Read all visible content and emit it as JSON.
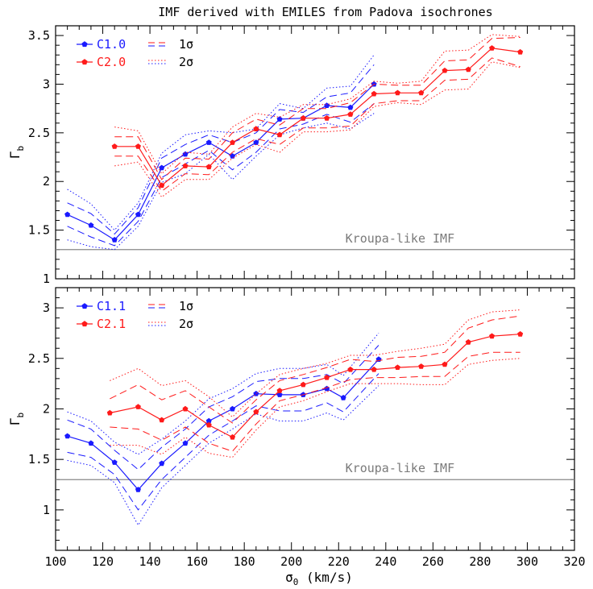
{
  "figure_title": "IMF derived with EMILES from Padova isochrones",
  "colors": {
    "blue": "#1a1aff",
    "red": "#ff1a1a",
    "kroupa": "#888888",
    "axis": "#000000"
  },
  "chart_data": [
    {
      "type": "line",
      "panel": "top",
      "title": "IMF derived with EMILES from Padova isochrones",
      "xlabel": "",
      "ylabel": "Γb",
      "xlim": [
        100,
        320
      ],
      "ylim": [
        1,
        3.6
      ],
      "x_ticks": [
        100,
        120,
        140,
        160,
        180,
        200,
        220,
        240,
        260,
        280,
        300,
        320
      ],
      "y_ticks": [
        1,
        1.5,
        2,
        2.5,
        3,
        3.5
      ],
      "y_tick_labels": [
        "1",
        "1.5",
        "2",
        "2.5",
        "3",
        "3.5"
      ],
      "reference_line": {
        "y": 1.3,
        "label": "Kroupa-like IMF"
      },
      "legend": {
        "placement": "top-left",
        "entries": [
          {
            "label": "C1.0",
            "color": "#1a1aff",
            "style": "solid-marker"
          },
          {
            "label": "C2.0",
            "color": "#ff1a1a",
            "style": "solid-marker"
          },
          {
            "label": "1σ",
            "style": "dashed"
          },
          {
            "label": "2σ",
            "style": "dotted"
          }
        ]
      },
      "series": [
        {
          "name": "C1.0",
          "color": "#1a1aff",
          "x": [
            105,
            115,
            125,
            135,
            145,
            155,
            165,
            175,
            185,
            195,
            205,
            215,
            225,
            235
          ],
          "y": [
            1.66,
            1.55,
            1.4,
            1.66,
            2.14,
            2.28,
            2.4,
            2.26,
            2.4,
            2.64,
            2.65,
            2.78,
            2.76,
            3.0
          ],
          "sigma1": [
            0.12,
            0.12,
            0.06,
            0.07,
            0.1,
            0.1,
            0.08,
            0.14,
            0.1,
            0.1,
            0.06,
            0.09,
            0.15,
            0.2
          ],
          "sigma2": [
            0.26,
            0.22,
            0.1,
            0.12,
            0.15,
            0.2,
            0.12,
            0.24,
            0.14,
            0.16,
            0.1,
            0.18,
            0.22,
            0.3
          ]
        },
        {
          "name": "C2.0",
          "color": "#ff1a1a",
          "x": [
            125,
            135,
            145,
            155,
            165,
            175,
            185,
            195,
            205,
            215,
            225,
            235,
            245,
            255,
            265,
            275,
            285,
            297
          ],
          "y": [
            2.36,
            2.36,
            1.96,
            2.16,
            2.15,
            2.4,
            2.54,
            2.48,
            2.65,
            2.65,
            2.69,
            2.9,
            2.91,
            2.91,
            3.14,
            3.15,
            3.37,
            3.33
          ],
          "sigma1": [
            0.1,
            0.1,
            0.06,
            0.08,
            0.08,
            0.1,
            0.1,
            0.1,
            0.1,
            0.1,
            0.12,
            0.1,
            0.08,
            0.08,
            0.1,
            0.1,
            0.1,
            0.15
          ],
          "sigma2": [
            0.2,
            0.16,
            0.12,
            0.14,
            0.13,
            0.16,
            0.16,
            0.18,
            0.14,
            0.14,
            0.16,
            0.13,
            0.1,
            0.12,
            0.2,
            0.2,
            0.14,
            0.16
          ]
        }
      ]
    },
    {
      "type": "line",
      "panel": "bottom",
      "xlabel": "σ0 (km/s)",
      "ylabel": "Γb",
      "xlim": [
        100,
        320
      ],
      "ylim": [
        0.6,
        3.2
      ],
      "x_ticks": [
        100,
        120,
        140,
        160,
        180,
        200,
        220,
        240,
        260,
        280,
        300,
        320
      ],
      "x_tick_labels": [
        "100",
        "120",
        "140",
        "160",
        "180",
        "200",
        "220",
        "240",
        "260",
        "280",
        "300",
        "320"
      ],
      "y_ticks": [
        1,
        1.5,
        2,
        2.5,
        3
      ],
      "y_tick_labels": [
        "1",
        "1.5",
        "2",
        "2.5",
        "3"
      ],
      "reference_line": {
        "y": 1.3,
        "label": "Kroupa-like IMF"
      },
      "legend": {
        "placement": "top-left",
        "entries": [
          {
            "label": "C1.1",
            "color": "#1a1aff",
            "style": "solid-marker"
          },
          {
            "label": "C2.1",
            "color": "#ff1a1a",
            "style": "solid-marker"
          },
          {
            "label": "1σ",
            "style": "dashed"
          },
          {
            "label": "2σ",
            "style": "dotted"
          }
        ]
      },
      "series": [
        {
          "name": "C1.1",
          "color": "#1a1aff",
          "x": [
            105,
            115,
            125,
            135,
            145,
            155,
            165,
            175,
            185,
            195,
            205,
            215,
            222,
            237
          ],
          "y": [
            1.73,
            1.66,
            1.47,
            1.2,
            1.46,
            1.66,
            1.88,
            2.0,
            2.15,
            2.14,
            2.14,
            2.2,
            2.11,
            2.49
          ],
          "sigma1": [
            0.16,
            0.14,
            0.12,
            0.2,
            0.16,
            0.14,
            0.14,
            0.12,
            0.12,
            0.16,
            0.16,
            0.14,
            0.14,
            0.14
          ],
          "sigma2": [
            0.24,
            0.22,
            0.2,
            0.35,
            0.24,
            0.22,
            0.22,
            0.2,
            0.2,
            0.26,
            0.26,
            0.24,
            0.22,
            0.26
          ]
        },
        {
          "name": "C2.1",
          "color": "#ff1a1a",
          "x": [
            123,
            135,
            145,
            155,
            165,
            175,
            185,
            195,
            205,
            215,
            225,
            235,
            245,
            255,
            265,
            275,
            285,
            297
          ],
          "y": [
            1.96,
            2.02,
            1.89,
            2.0,
            1.84,
            1.72,
            1.97,
            2.18,
            2.24,
            2.31,
            2.39,
            2.39,
            2.41,
            2.42,
            2.44,
            2.66,
            2.72,
            2.74
          ],
          "sigma1": [
            0.14,
            0.22,
            0.2,
            0.18,
            0.18,
            0.14,
            0.12,
            0.1,
            0.1,
            0.1,
            0.1,
            0.08,
            0.1,
            0.1,
            0.12,
            0.14,
            0.16,
            0.18
          ],
          "sigma2": [
            0.32,
            0.38,
            0.34,
            0.28,
            0.28,
            0.2,
            0.18,
            0.16,
            0.16,
            0.14,
            0.14,
            0.14,
            0.16,
            0.18,
            0.2,
            0.22,
            0.24,
            0.24
          ]
        }
      ]
    }
  ]
}
